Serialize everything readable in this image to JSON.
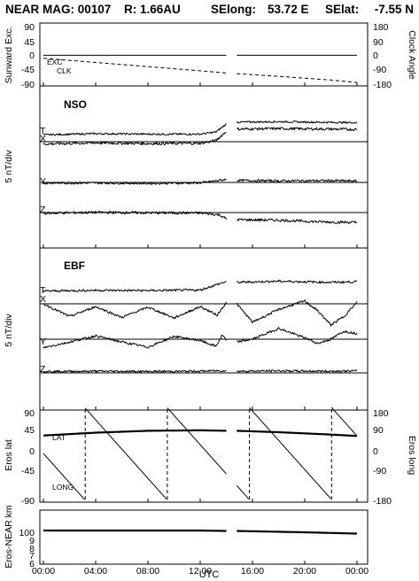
{
  "header": {
    "title": "NEAR MAG: 00107",
    "range": "R: 1.66AU",
    "selong_label": "SElong:",
    "selong_value": "53.72 E",
    "selat_label": "SElat:",
    "selat_value": "-7.55 N"
  },
  "time_axis": {
    "label": "UTC",
    "ticks": [
      "00:00",
      "04:00",
      "08:00",
      "12:00",
      "16:00",
      "20:00",
      "00:00"
    ],
    "tick_hours": [
      0,
      4,
      8,
      12,
      16,
      20,
      24
    ],
    "data_gap_hours": [
      14.0,
      14.8
    ]
  },
  "panels": {
    "sunward": {
      "left_label": "Sunward Exc.",
      "right_label": "Clock Angle",
      "left_ticks": [
        "90",
        "45",
        "0",
        "-45",
        "-90"
      ],
      "right_ticks": [
        "180",
        "90",
        "0",
        "-90",
        "-180"
      ],
      "legend_exc": "EXC",
      "legend_clk": "CLK"
    },
    "nso": {
      "title": "NSO",
      "left_label": "5 nT/div",
      "traces": [
        "T",
        "X",
        "Y",
        "Z"
      ]
    },
    "ebf": {
      "title": "EBF",
      "left_label": "5 nT/div",
      "traces": [
        "T",
        "X",
        "Y",
        "Z"
      ]
    },
    "eros": {
      "left_label": "Eros lat",
      "right_label": "Eros long",
      "left_ticks": [
        "90",
        "45",
        "0",
        "-45",
        "-90"
      ],
      "right_ticks": [
        "180",
        "90",
        "0",
        "-90",
        "-180"
      ],
      "legend_lat": "LAT",
      "legend_long": "LONG"
    },
    "distance": {
      "left_label": "Eros-NEAR km",
      "ticks": [
        "100",
        "9",
        "8",
        "7",
        "6"
      ]
    }
  },
  "chart_data": [
    {
      "type": "line",
      "panel": "sunward",
      "x_units": "hours UTC",
      "xlim": [
        0,
        24
      ],
      "ylim_left": [
        -90,
        90
      ],
      "ylim_right": [
        -180,
        180
      ],
      "series": [
        {
          "name": "EXC",
          "axis": "left",
          "x": [
            0,
            6,
            12,
            14,
            14.8,
            20,
            24
          ],
          "y": [
            -1,
            -1,
            -1,
            -1,
            -1,
            -1,
            -1
          ]
        },
        {
          "name": "CLK",
          "axis": "right",
          "x": [
            0,
            4,
            8,
            12,
            14,
            14.8,
            18,
            22,
            24
          ],
          "y": [
            -20,
            -45,
            -70,
            -95,
            -108,
            -112,
            -128,
            -150,
            -165
          ]
        }
      ]
    },
    {
      "type": "line",
      "panel": "nso",
      "x_units": "hours UTC",
      "y_units": "nT, 5 nT/div, offset per trace",
      "series": [
        {
          "name": "T",
          "x": [
            0,
            4,
            8,
            12,
            13.2,
            14,
            14.8,
            18,
            22,
            24
          ],
          "y": [
            0.3,
            0.8,
            0.6,
            0.6,
            1.5,
            5.0,
            5.8,
            6.0,
            5.7,
            5.6
          ],
          "noise": 0.4,
          "min_hold": true
        },
        {
          "name": "X",
          "x": [
            0,
            4,
            8,
            12,
            13.2,
            14,
            14.8,
            18,
            22,
            24
          ],
          "y": [
            -1.0,
            -0.5,
            -0.8,
            -0.7,
            0.5,
            4.5,
            5.5,
            5.7,
            5.5,
            5.3
          ],
          "noise": 0.6
        },
        {
          "name": "Y",
          "x": [
            0,
            4,
            8,
            12,
            14,
            14.8,
            18,
            22,
            24
          ],
          "y": [
            -0.3,
            -0.2,
            -0.4,
            -0.2,
            1.3,
            0.9,
            0.7,
            0.8,
            0.6
          ],
          "noise": 0.5
        },
        {
          "name": "Z",
          "x": [
            0,
            4,
            8,
            12,
            13.5,
            14,
            14.8,
            18,
            21,
            24
          ],
          "y": [
            -0.3,
            0.1,
            -0.1,
            -0.2,
            -1.0,
            -2.8,
            -3.1,
            -3.3,
            -4.0,
            -4.3
          ],
          "noise": 0.6
        }
      ]
    },
    {
      "type": "line",
      "panel": "ebf",
      "x_units": "hours UTC",
      "y_units": "nT, 5 nT/div, offset per trace",
      "series": [
        {
          "name": "T",
          "x": [
            0,
            4,
            8,
            12,
            14,
            14.8,
            18,
            22,
            24
          ],
          "y": [
            0.4,
            0.7,
            0.6,
            0.8,
            3.8,
            3.5,
            3.9,
            3.5,
            3.7
          ],
          "noise": 0.4,
          "min_hold": true
        },
        {
          "name": "X",
          "x": [
            0,
            2,
            4,
            6,
            8,
            10,
            12,
            13.3,
            14,
            14.8,
            16,
            18,
            20,
            21,
            22,
            23,
            24
          ],
          "y": [
            0.0,
            -4.5,
            -1.0,
            -4.8,
            -1.2,
            -5.0,
            -1.0,
            -4.0,
            0.5,
            0.0,
            -6.5,
            -2.0,
            1.0,
            -2.5,
            -7.5,
            -4.5,
            0.5
          ],
          "noise": 0.4
        },
        {
          "name": "Y",
          "x": [
            0,
            2,
            4,
            6,
            8,
            10,
            12,
            13.2,
            13.7,
            14,
            14.8,
            16,
            18,
            20,
            21,
            22,
            23,
            24
          ],
          "y": [
            -3.0,
            -1.0,
            1.2,
            -1.0,
            -2.8,
            1.0,
            -0.5,
            -2.5,
            1.5,
            -0.5,
            -1.0,
            0.0,
            3.8,
            0.5,
            -1.5,
            0.0,
            2.8,
            2.0
          ],
          "noise": 0.4
        },
        {
          "name": "Z",
          "x": [
            0,
            4,
            8,
            12,
            14,
            14.8,
            18,
            22,
            24
          ],
          "y": [
            0.5,
            0.6,
            0.5,
            0.6,
            0.8,
            0.6,
            0.7,
            0.6,
            0.7
          ],
          "noise": 0.35
        }
      ]
    },
    {
      "type": "line",
      "panel": "eros",
      "x_units": "hours UTC",
      "ylim_left": [
        -90,
        90
      ],
      "ylim_right": [
        -180,
        180
      ],
      "series": [
        {
          "name": "LAT",
          "axis": "left",
          "x": [
            0,
            4,
            8,
            12,
            14,
            14.8,
            18,
            22,
            24
          ],
          "y": [
            38,
            44,
            48,
            49,
            48,
            48,
            45,
            40,
            37
          ]
        },
        {
          "name": "LONG",
          "axis": "right",
          "sawtooth": true,
          "period_hours": 6.3,
          "start_hour": 3.15,
          "ymax": 180,
          "ymin": -180
        }
      ]
    },
    {
      "type": "line",
      "panel": "distance",
      "x_units": "hours UTC",
      "y_units": "km",
      "series": [
        {
          "name": "Eros-NEAR",
          "x": [
            0,
            6,
            12,
            14,
            14.8,
            20,
            24
          ],
          "y": [
            101,
            101,
            101,
            100.9,
            100.9,
            100.6,
            100.3
          ]
        }
      ]
    }
  ]
}
